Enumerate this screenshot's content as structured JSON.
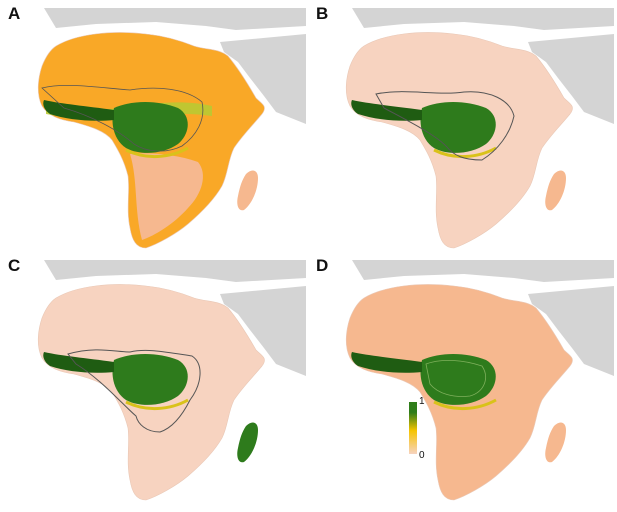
{
  "panels": [
    {
      "label": "A",
      "scheme": "A"
    },
    {
      "label": "B",
      "scheme": "B"
    },
    {
      "label": "C",
      "scheme": "C"
    },
    {
      "label": "D",
      "scheme": "D"
    }
  ],
  "legend": {
    "max_label": "1",
    "min_label": "0",
    "colors": [
      "#2f7d1a",
      "#f5c400",
      "#f7d3c0"
    ]
  },
  "colors": {
    "land_gray": "#d4d4d4",
    "sahara_orange": "#f9a827",
    "low_suitability": "#f7d3c0",
    "mid_suitability": "#f6b88f",
    "forest_green": "#2e7b1c",
    "forest_dark": "#1f5c12",
    "yellow_fringe": "#d9c21a",
    "outline": "#555555"
  }
}
